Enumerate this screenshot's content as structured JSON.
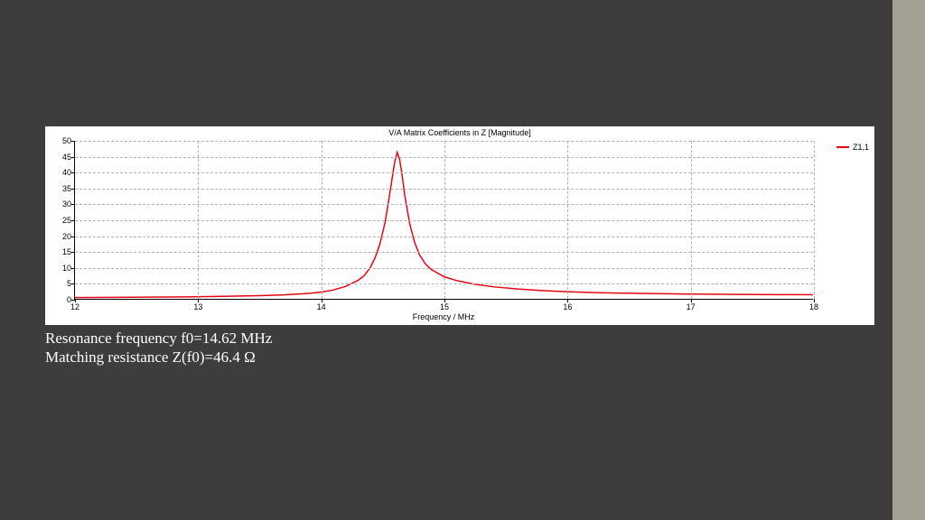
{
  "background_color": "#3d3d3d",
  "side_strip_color": "#a4a094",
  "chart": {
    "type": "line",
    "title": "V/A Matrix Coefficients in Z [Magnitude]",
    "title_fontsize": 9,
    "background_color": "#ffffff",
    "grid_color": "#b0b0b0",
    "axis_color": "#000000",
    "x_axis": {
      "label": "Frequency / MHz",
      "label_fontsize": 9,
      "min": 12,
      "max": 18,
      "ticks": [
        12,
        13,
        14,
        15,
        16,
        17,
        18
      ]
    },
    "y_axis": {
      "min": 0,
      "max": 50,
      "ticks": [
        0,
        5,
        10,
        15,
        20,
        25,
        30,
        35,
        40,
        45,
        50
      ]
    },
    "series": {
      "name": "Z1,1",
      "color": "#e30613",
      "line_width": 1.5,
      "data": [
        [
          12.0,
          0.4
        ],
        [
          12.3,
          0.45
        ],
        [
          12.6,
          0.52
        ],
        [
          12.9,
          0.62
        ],
        [
          13.2,
          0.78
        ],
        [
          13.5,
          1.0
        ],
        [
          13.7,
          1.25
        ],
        [
          13.9,
          1.7
        ],
        [
          14.0,
          2.1
        ],
        [
          14.1,
          2.8
        ],
        [
          14.2,
          3.9
        ],
        [
          14.3,
          5.8
        ],
        [
          14.35,
          7.3
        ],
        [
          14.4,
          9.8
        ],
        [
          14.44,
          13.0
        ],
        [
          14.48,
          17.5
        ],
        [
          14.52,
          24.0
        ],
        [
          14.55,
          31.0
        ],
        [
          14.58,
          38.5
        ],
        [
          14.6,
          43.5
        ],
        [
          14.62,
          46.4
        ],
        [
          14.64,
          44.0
        ],
        [
          14.66,
          39.0
        ],
        [
          14.68,
          33.0
        ],
        [
          14.72,
          24.0
        ],
        [
          14.76,
          18.0
        ],
        [
          14.8,
          14.0
        ],
        [
          14.85,
          11.0
        ],
        [
          14.9,
          9.2
        ],
        [
          15.0,
          7.0
        ],
        [
          15.1,
          5.8
        ],
        [
          15.25,
          4.6
        ],
        [
          15.4,
          3.8
        ],
        [
          15.6,
          3.1
        ],
        [
          15.8,
          2.6
        ],
        [
          16.0,
          2.25
        ],
        [
          16.3,
          1.9
        ],
        [
          16.6,
          1.7
        ],
        [
          17.0,
          1.5
        ],
        [
          17.4,
          1.4
        ],
        [
          17.7,
          1.33
        ],
        [
          18.0,
          1.3
        ]
      ]
    },
    "legend": {
      "position": "right-top"
    }
  },
  "captions": {
    "line1": "Resonance frequency f0=14.62 MHz",
    "line2": "Matching resistance Z(f0)=46.4 Ω",
    "color": "#ffffff",
    "fontsize": 17
  }
}
